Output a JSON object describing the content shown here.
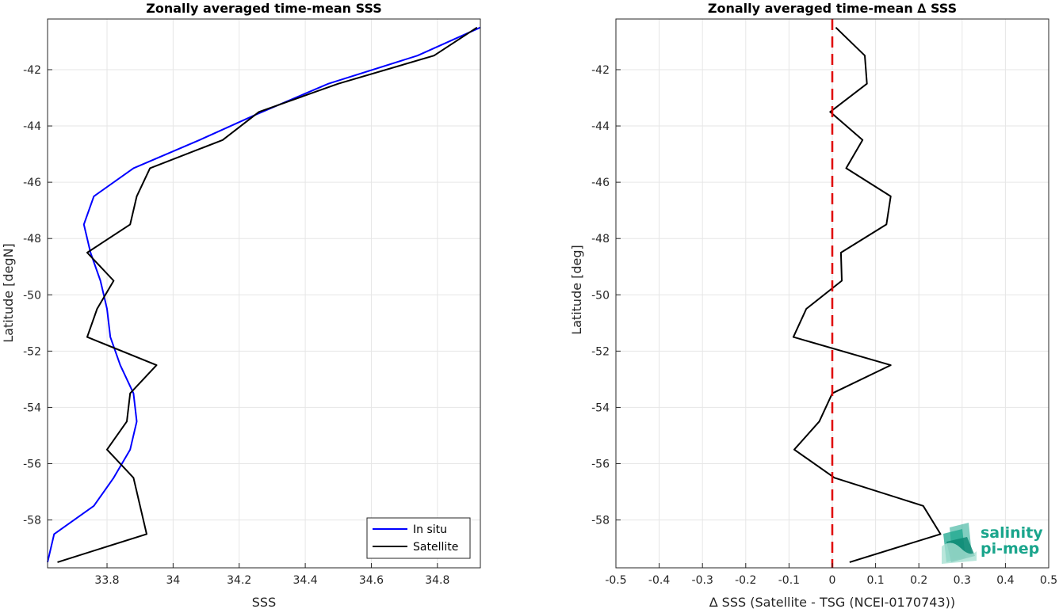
{
  "chart_data": [
    {
      "type": "line",
      "title": "Zonally averaged time-mean SSS",
      "xlabel": "SSS",
      "ylabel": "Latitude [degN]",
      "xlim": [
        33.62,
        34.93
      ],
      "ylim": [
        -59.7,
        -40.2
      ],
      "xticks": [
        33.8,
        34,
        34.2,
        34.4,
        34.6,
        34.8
      ],
      "xtick_labels": [
        "33.8",
        "34",
        "34.2",
        "34.4",
        "34.6",
        "34.8"
      ],
      "yticks": [
        -58,
        -56,
        -54,
        -52,
        -50,
        -48,
        -46,
        -44,
        -42
      ],
      "ytick_labels": [
        "-58",
        "-56",
        "-54",
        "-52",
        "-50",
        "-48",
        "-46",
        "-44",
        "-42"
      ],
      "grid": true,
      "legend": {
        "placement": "bottom-right",
        "entries": [
          "In situ",
          "Satellite"
        ]
      },
      "series": [
        {
          "name": "In situ",
          "color": "#0000ff",
          "points": [
            [
              34.93,
              -40.5
            ],
            [
              34.74,
              -41.5
            ],
            [
              34.47,
              -42.5
            ],
            [
              34.25,
              -43.6
            ],
            [
              34.08,
              -44.5
            ],
            [
              33.88,
              -45.5
            ],
            [
              33.76,
              -46.5
            ],
            [
              33.73,
              -47.5
            ],
            [
              33.75,
              -48.5
            ],
            [
              33.78,
              -49.5
            ],
            [
              33.8,
              -50.5
            ],
            [
              33.81,
              -51.5
            ],
            [
              33.84,
              -52.5
            ],
            [
              33.88,
              -53.5
            ],
            [
              33.89,
              -54.5
            ],
            [
              33.87,
              -55.5
            ],
            [
              33.82,
              -56.5
            ],
            [
              33.76,
              -57.5
            ],
            [
              33.64,
              -58.5
            ],
            [
              33.62,
              -59.5
            ]
          ]
        },
        {
          "name": "Satellite",
          "color": "#000000",
          "points": [
            [
              34.92,
              -40.5
            ],
            [
              34.79,
              -41.5
            ],
            [
              34.5,
              -42.5
            ],
            [
              34.26,
              -43.5
            ],
            [
              34.15,
              -44.5
            ],
            [
              33.93,
              -45.5
            ],
            [
              33.89,
              -46.5
            ],
            [
              33.87,
              -47.5
            ],
            [
              33.74,
              -48.5
            ],
            [
              33.82,
              -49.5
            ],
            [
              33.77,
              -50.5
            ],
            [
              33.74,
              -51.5
            ],
            [
              33.95,
              -52.5
            ],
            [
              33.87,
              -53.5
            ],
            [
              33.86,
              -54.5
            ],
            [
              33.8,
              -55.5
            ],
            [
              33.88,
              -56.5
            ],
            [
              33.9,
              -57.5
            ],
            [
              33.92,
              -58.5
            ],
            [
              33.65,
              -59.5
            ]
          ]
        }
      ]
    },
    {
      "type": "line",
      "title": "Zonally averaged time-mean ∆ SSS",
      "xlabel": "∆ SSS (Satellite - TSG (NCEI-0170743))",
      "ylabel": "Latitude [deg]",
      "xlim": [
        -0.5,
        0.5
      ],
      "ylim": [
        -59.7,
        -40.2
      ],
      "xticks": [
        -0.5,
        -0.4,
        -0.3,
        -0.2,
        -0.1,
        0,
        0.1,
        0.2,
        0.3,
        0.4,
        0.5
      ],
      "xtick_labels": [
        "-0.5",
        "-0.4",
        "-0.3",
        "-0.2",
        "-0.1",
        "0",
        "0.1",
        "0.2",
        "0.3",
        "0.4",
        "0.5"
      ],
      "yticks": [
        -58,
        -56,
        -54,
        -52,
        -50,
        -48,
        -46,
        -44,
        -42
      ],
      "ytick_labels": [
        "-58",
        "-56",
        "-54",
        "-52",
        "-50",
        "-48",
        "-46",
        "-44",
        "-42"
      ],
      "grid": true,
      "reference_line": {
        "x": 0,
        "color": "#e00000",
        "style": "dashed"
      },
      "series": [
        {
          "color": "#000000",
          "points": [
            [
              0.008,
              -40.5
            ],
            [
              0.075,
              -41.5
            ],
            [
              0.08,
              -42.5
            ],
            [
              -0.005,
              -43.5
            ],
            [
              0.07,
              -44.5
            ],
            [
              0.032,
              -45.5
            ],
            [
              0.135,
              -46.5
            ],
            [
              0.125,
              -47.5
            ],
            [
              0.02,
              -48.5
            ],
            [
              0.022,
              -49.5
            ],
            [
              -0.06,
              -50.5
            ],
            [
              -0.09,
              -51.5
            ],
            [
              0.135,
              -52.5
            ],
            [
              0.0,
              -53.5
            ],
            [
              -0.03,
              -54.5
            ],
            [
              -0.088,
              -55.5
            ],
            [
              0.005,
              -56.5
            ],
            [
              0.21,
              -57.5
            ],
            [
              0.25,
              -58.5
            ],
            [
              0.04,
              -59.5
            ]
          ]
        }
      ]
    }
  ],
  "logo": {
    "line1": "salinity",
    "line2": "pi-mep",
    "color": "#1aa58c"
  }
}
